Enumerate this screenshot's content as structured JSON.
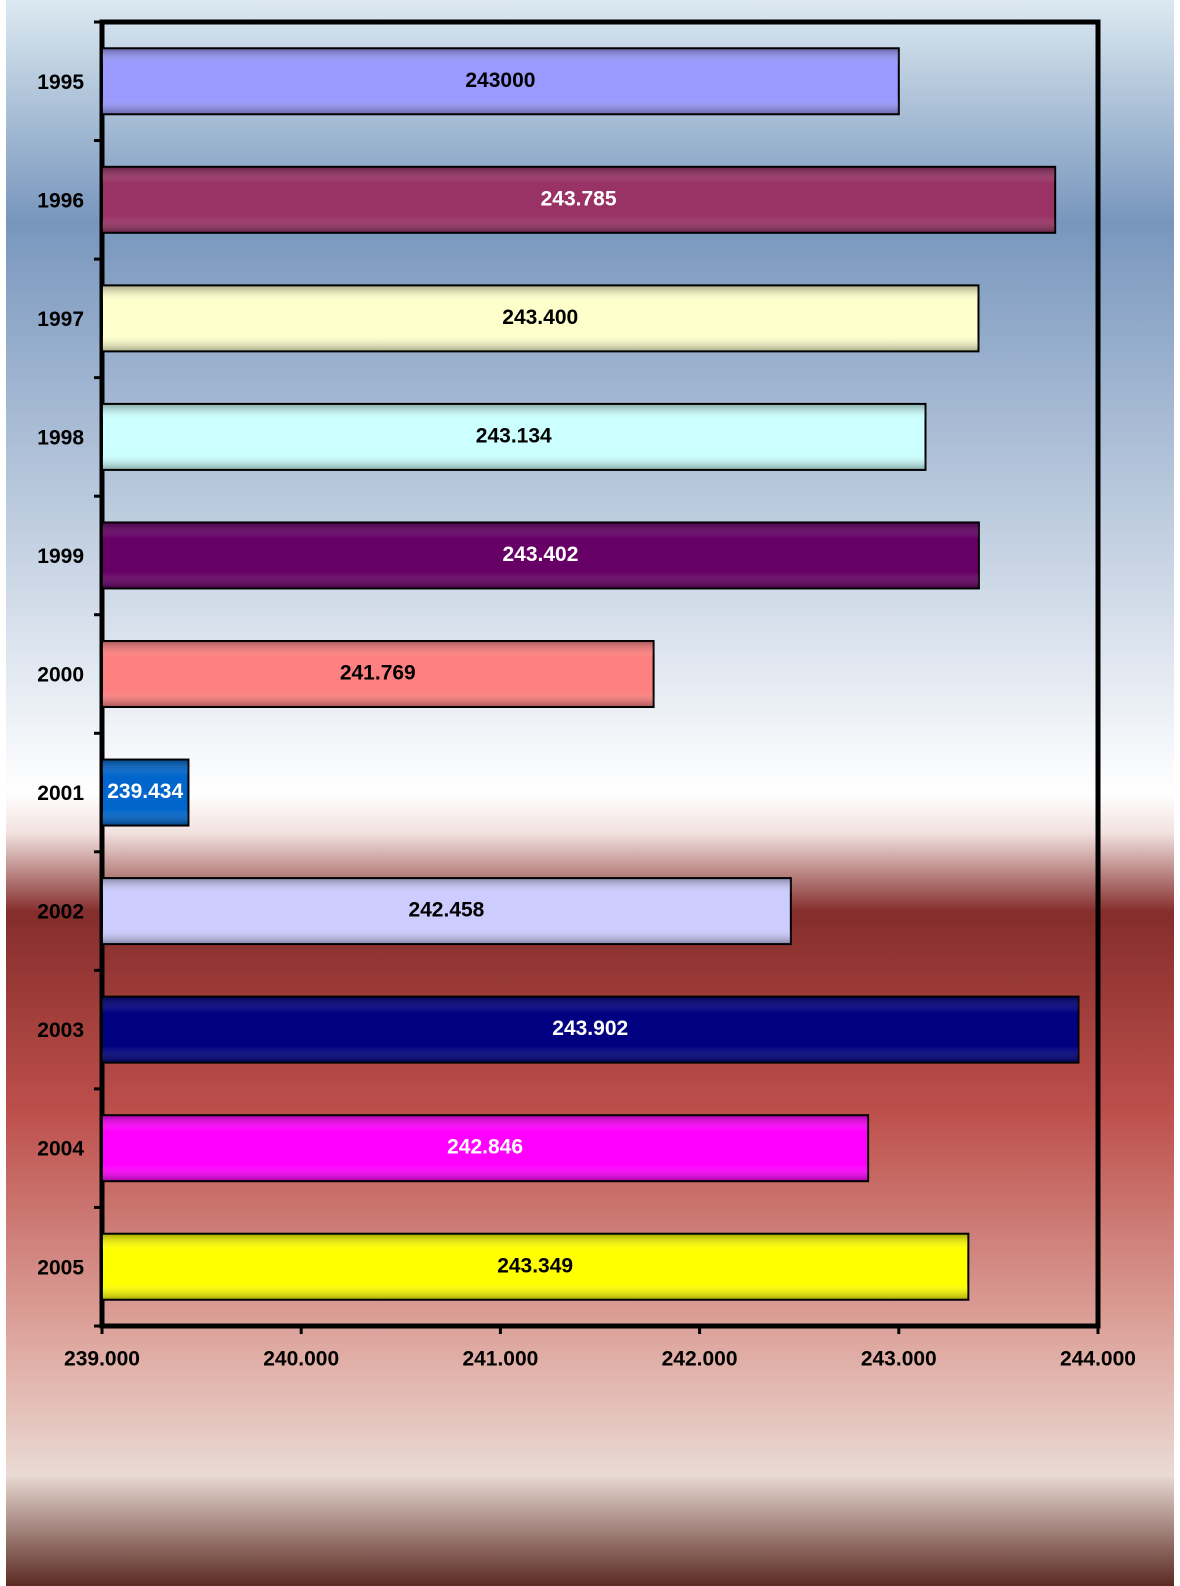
{
  "chart_data": {
    "type": "hbar",
    "categories": [
      "1995",
      "1996",
      "1997",
      "1998",
      "1999",
      "2000",
      "2001",
      "2002",
      "2003",
      "2004",
      "2005"
    ],
    "values": [
      243000,
      243785,
      243400,
      243134,
      243402,
      241769,
      239434,
      242458,
      243902,
      242846,
      243349
    ],
    "value_labels": [
      "243000",
      "243.785",
      "243.400",
      "243.134",
      "243.402",
      "241.769",
      "239.434",
      "242.458",
      "243.902",
      "242.846",
      "243.349"
    ],
    "colors": [
      "#9999ff",
      "#993366",
      "#ffffcc",
      "#ccffff",
      "#660066",
      "#ff8080",
      "#0066cc",
      "#ccccff",
      "#000080",
      "#ff00ff",
      "#ffff00"
    ],
    "xlim": [
      239000,
      244000
    ],
    "xticks": [
      {
        "value": 239000,
        "label": "239.000"
      },
      {
        "value": 240000,
        "label": "240.000"
      },
      {
        "value": 241000,
        "label": "241.000"
      },
      {
        "value": 242000,
        "label": "242.000"
      },
      {
        "value": 243000,
        "label": "243.000"
      },
      {
        "value": 244000,
        "label": "244.000"
      }
    ]
  }
}
